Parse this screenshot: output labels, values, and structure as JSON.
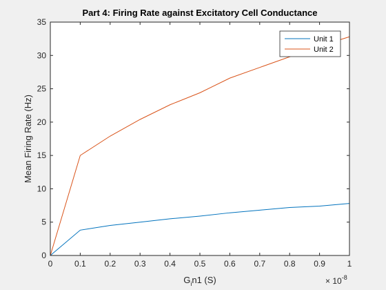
{
  "chart_data": {
    "type": "line",
    "title": "Part 4: Firing Rate against Excitatory Cell Conductance",
    "xlabel_main": "G",
    "xlabel_sub": "i",
    "xlabel_rest": "n1 (S)",
    "ylabel": "Mean Firing Rate (Hz)",
    "x_exponent_base": "× 10",
    "x_exponent_power": "-8",
    "xlim": [
      0,
      1
    ],
    "ylim": [
      0,
      35
    ],
    "xticks": [
      0,
      0.1,
      0.2,
      0.3,
      0.4,
      0.5,
      0.6,
      0.7,
      0.8,
      0.9,
      1
    ],
    "xtick_labels": [
      "0",
      "0.1",
      "0.2",
      "0.3",
      "0.4",
      "0.5",
      "0.6",
      "0.7",
      "0.8",
      "0.9",
      "1"
    ],
    "yticks": [
      0,
      5,
      10,
      15,
      20,
      25,
      30,
      35
    ],
    "ytick_labels": [
      "0",
      "5",
      "10",
      "15",
      "20",
      "25",
      "30",
      "35"
    ],
    "legend_position": "top-right",
    "grid": false,
    "x": [
      0,
      0.1,
      0.2,
      0.3,
      0.4,
      0.5,
      0.6,
      0.7,
      0.8,
      0.9,
      1.0
    ],
    "series": [
      {
        "name": "Unit 1",
        "color": "#0072BD",
        "values": [
          0,
          3.8,
          4.5,
          5.0,
          5.5,
          5.9,
          6.4,
          6.8,
          7.2,
          7.4,
          7.8
        ]
      },
      {
        "name": "Unit 2",
        "color": "#D95319",
        "values": [
          0,
          15.0,
          17.9,
          20.4,
          22.6,
          24.4,
          26.6,
          28.2,
          29.8,
          31.4,
          32.8
        ]
      }
    ]
  }
}
